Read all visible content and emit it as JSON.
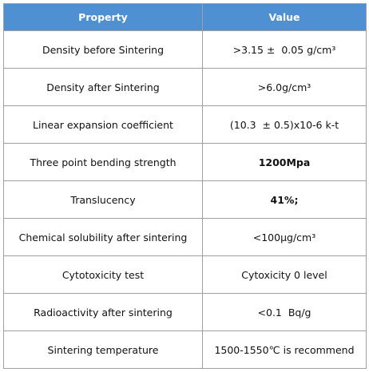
{
  "table": {
    "header": [
      "Property",
      "Value"
    ],
    "rows": [
      [
        "Density before Sintering",
        ">3.15 ±  0.05 g/cm³"
      ],
      [
        "Density after Sintering",
        ">6.0g/cm³"
      ],
      [
        "Linear expansion coefficient",
        "(10.3  ± 0.5)x10-6 k-t"
      ],
      [
        "Three point bending strength",
        "1200Mpa"
      ],
      [
        "Translucency",
        "41%;"
      ],
      [
        "Chemical solubility after sintering",
        "<100μg/cm³"
      ],
      [
        "Cytotoxicity test",
        "Cytoxicity 0 level"
      ],
      [
        "Radioactivity after sintering",
        "<0.1  Bq/g"
      ],
      [
        "Sintering temperature",
        "1500-1550℃ is recommend"
      ]
    ]
  }
}
